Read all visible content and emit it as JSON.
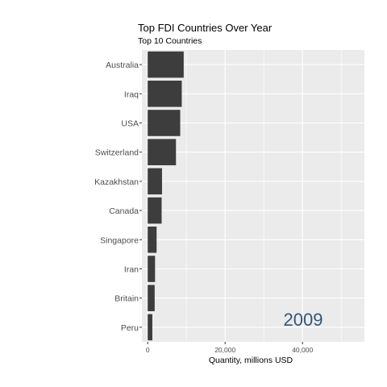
{
  "chart_data": {
    "type": "bar",
    "orientation": "horizontal",
    "title": "Top FDI Countries Over Year",
    "subtitle": "Top 10 Countries",
    "xlabel": "Quantity, millions USD",
    "ylabel": "",
    "annotation": "2009",
    "categories": [
      "Australia",
      "Iraq",
      "USA",
      "Switzerland",
      "Kazakhstan",
      "Canada",
      "Singapore",
      "Iran",
      "Britain",
      "Peru"
    ],
    "values": [
      9300,
      8800,
      8400,
      7300,
      3700,
      3600,
      2300,
      1900,
      1800,
      1200
    ],
    "xlim": [
      -1500,
      56000
    ],
    "xticks": [
      0,
      20000,
      40000
    ],
    "xtick_labels": [
      "0",
      "20,000",
      "40,000"
    ],
    "grid": true,
    "legend": "none",
    "colors": {
      "bar": "#3d3d3d",
      "panel": "#ebebeb",
      "grid": "#ffffff",
      "annotation": "#34567a",
      "text": "#000000",
      "tick_text": "#4d4d4d"
    }
  }
}
